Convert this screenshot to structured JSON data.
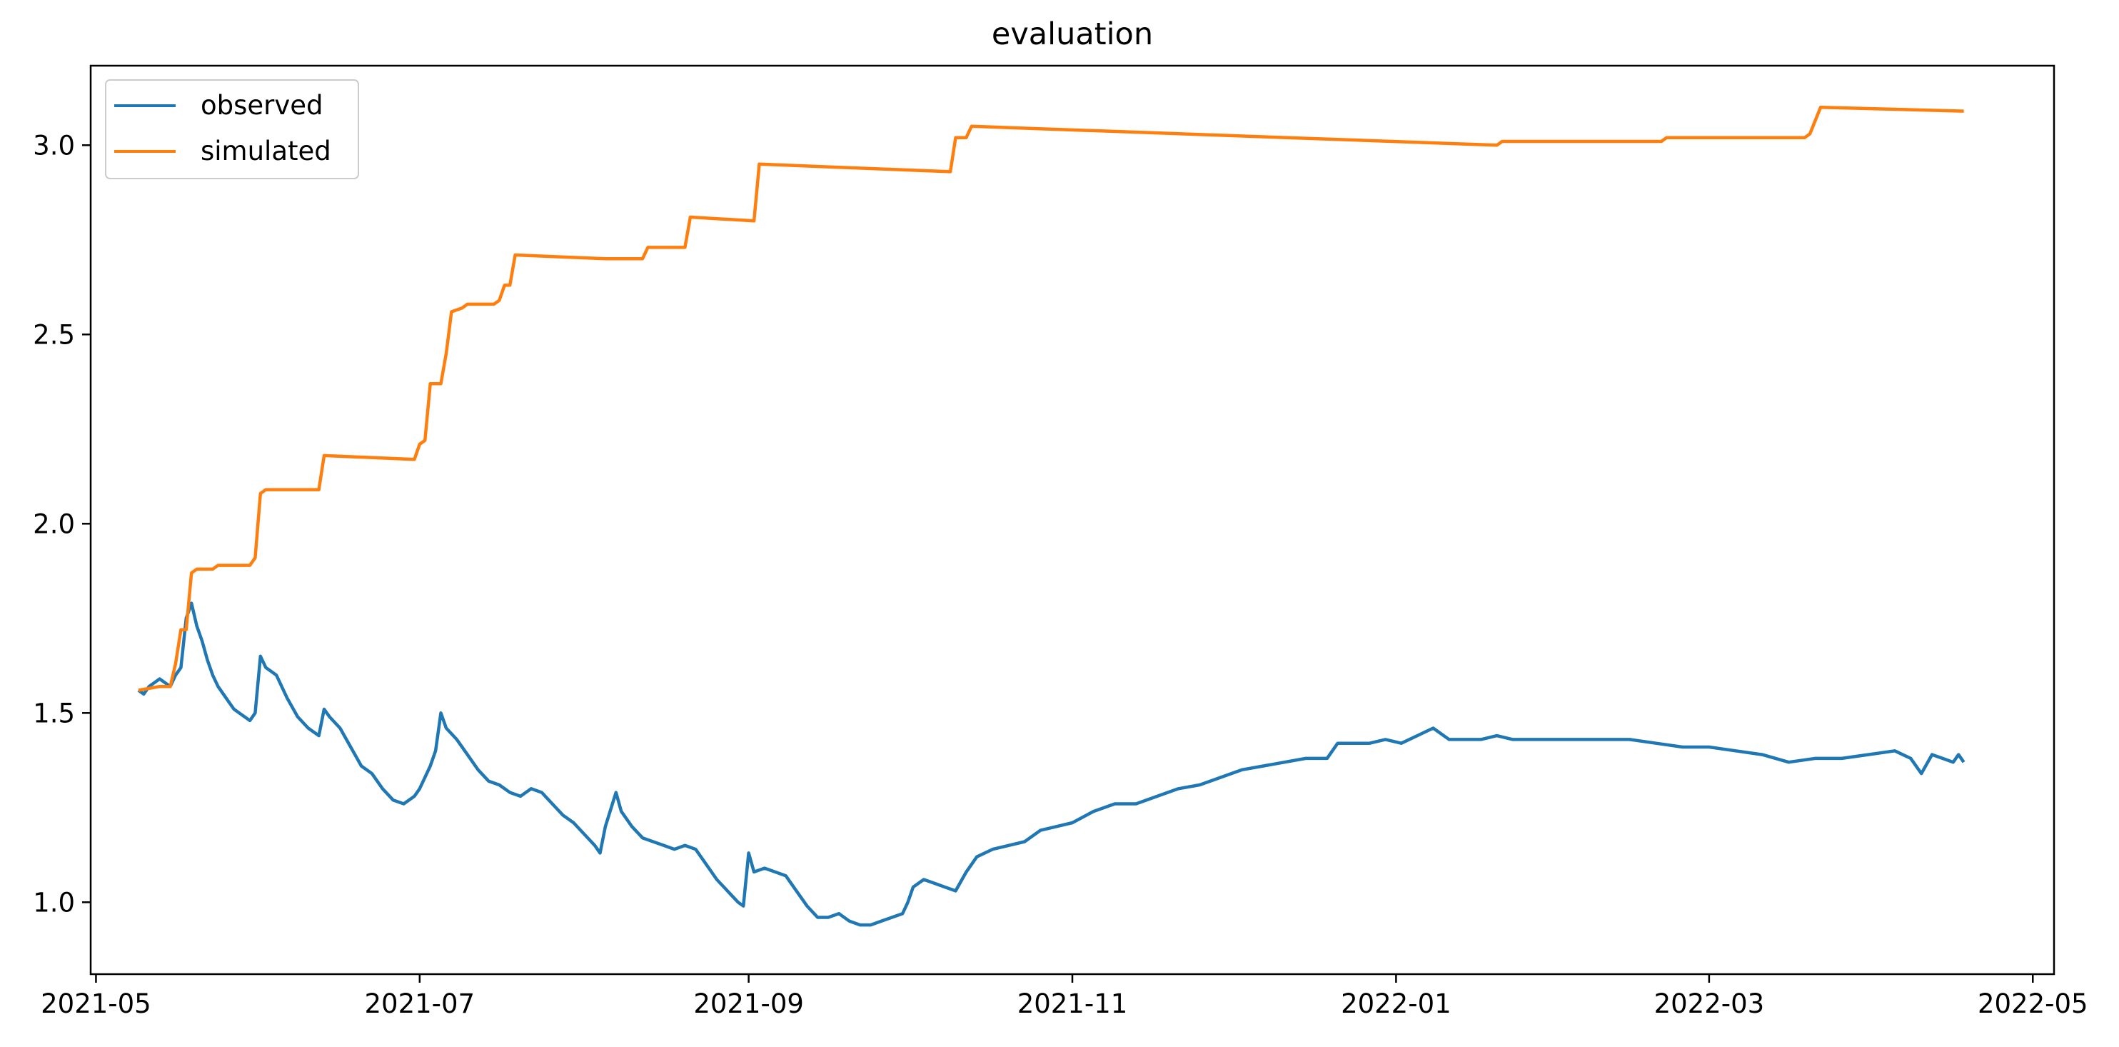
{
  "chart_data": {
    "type": "line",
    "title": "evaluation",
    "xlabel": "",
    "ylabel": "",
    "xlim": [
      "2021-04-30",
      "2022-05-05"
    ],
    "ylim": [
      0.81,
      3.21
    ],
    "xticks": [
      {
        "date": "2021-05-01",
        "label": "2021-05"
      },
      {
        "date": "2021-07-01",
        "label": "2021-07"
      },
      {
        "date": "2021-09-01",
        "label": "2021-09"
      },
      {
        "date": "2021-11-01",
        "label": "2021-11"
      },
      {
        "date": "2022-01-01",
        "label": "2022-01"
      },
      {
        "date": "2022-03-01",
        "label": "2022-03"
      },
      {
        "date": "2022-05-01",
        "label": "2022-05"
      }
    ],
    "yticks": [
      {
        "value": 1.0,
        "label": "1.0"
      },
      {
        "value": 1.5,
        "label": "1.5"
      },
      {
        "value": 2.0,
        "label": "2.0"
      },
      {
        "value": 2.5,
        "label": "2.5"
      },
      {
        "value": 3.0,
        "label": "3.0"
      }
    ],
    "grid": false,
    "legend": {
      "position": "top-left"
    },
    "series": [
      {
        "name": "observed",
        "color": "#1f77b4",
        "points": [
          [
            "2021-05-09",
            1.56
          ],
          [
            "2021-05-10",
            1.55
          ],
          [
            "2021-05-11",
            1.57
          ],
          [
            "2021-05-12",
            1.58
          ],
          [
            "2021-05-13",
            1.59
          ],
          [
            "2021-05-14",
            1.58
          ],
          [
            "2021-05-15",
            1.57
          ],
          [
            "2021-05-16",
            1.6
          ],
          [
            "2021-05-17",
            1.62
          ],
          [
            "2021-05-18",
            1.75
          ],
          [
            "2021-05-19",
            1.79
          ],
          [
            "2021-05-20",
            1.73
          ],
          [
            "2021-05-21",
            1.69
          ],
          [
            "2021-05-22",
            1.64
          ],
          [
            "2021-05-23",
            1.6
          ],
          [
            "2021-05-24",
            1.57
          ],
          [
            "2021-05-25",
            1.55
          ],
          [
            "2021-05-26",
            1.53
          ],
          [
            "2021-05-27",
            1.51
          ],
          [
            "2021-05-28",
            1.5
          ],
          [
            "2021-05-29",
            1.49
          ],
          [
            "2021-05-30",
            1.48
          ],
          [
            "2021-05-31",
            1.5
          ],
          [
            "2021-06-01",
            1.65
          ],
          [
            "2021-06-02",
            1.62
          ],
          [
            "2021-06-04",
            1.6
          ],
          [
            "2021-06-06",
            1.54
          ],
          [
            "2021-06-08",
            1.49
          ],
          [
            "2021-06-10",
            1.46
          ],
          [
            "2021-06-12",
            1.44
          ],
          [
            "2021-06-13",
            1.51
          ],
          [
            "2021-06-14",
            1.49
          ],
          [
            "2021-06-16",
            1.46
          ],
          [
            "2021-06-18",
            1.41
          ],
          [
            "2021-06-20",
            1.36
          ],
          [
            "2021-06-22",
            1.34
          ],
          [
            "2021-06-24",
            1.3
          ],
          [
            "2021-06-26",
            1.27
          ],
          [
            "2021-06-28",
            1.26
          ],
          [
            "2021-06-30",
            1.28
          ],
          [
            "2021-07-01",
            1.3
          ],
          [
            "2021-07-03",
            1.36
          ],
          [
            "2021-07-04",
            1.4
          ],
          [
            "2021-07-05",
            1.5
          ],
          [
            "2021-07-06",
            1.46
          ],
          [
            "2021-07-08",
            1.43
          ],
          [
            "2021-07-10",
            1.39
          ],
          [
            "2021-07-12",
            1.35
          ],
          [
            "2021-07-14",
            1.32
          ],
          [
            "2021-07-16",
            1.31
          ],
          [
            "2021-07-18",
            1.29
          ],
          [
            "2021-07-20",
            1.28
          ],
          [
            "2021-07-22",
            1.3
          ],
          [
            "2021-07-24",
            1.29
          ],
          [
            "2021-07-26",
            1.26
          ],
          [
            "2021-07-28",
            1.23
          ],
          [
            "2021-07-30",
            1.21
          ],
          [
            "2021-08-01",
            1.18
          ],
          [
            "2021-08-03",
            1.15
          ],
          [
            "2021-08-04",
            1.13
          ],
          [
            "2021-08-05",
            1.2
          ],
          [
            "2021-08-07",
            1.29
          ],
          [
            "2021-08-08",
            1.24
          ],
          [
            "2021-08-10",
            1.2
          ],
          [
            "2021-08-12",
            1.17
          ],
          [
            "2021-08-14",
            1.16
          ],
          [
            "2021-08-16",
            1.15
          ],
          [
            "2021-08-18",
            1.14
          ],
          [
            "2021-08-20",
            1.15
          ],
          [
            "2021-08-22",
            1.14
          ],
          [
            "2021-08-24",
            1.1
          ],
          [
            "2021-08-26",
            1.06
          ],
          [
            "2021-08-28",
            1.03
          ],
          [
            "2021-08-30",
            1.0
          ],
          [
            "2021-08-31",
            0.99
          ],
          [
            "2021-09-01",
            1.13
          ],
          [
            "2021-09-02",
            1.08
          ],
          [
            "2021-09-04",
            1.09
          ],
          [
            "2021-09-06",
            1.08
          ],
          [
            "2021-09-08",
            1.07
          ],
          [
            "2021-09-10",
            1.03
          ],
          [
            "2021-09-12",
            0.99
          ],
          [
            "2021-09-14",
            0.96
          ],
          [
            "2021-09-16",
            0.96
          ],
          [
            "2021-09-18",
            0.97
          ],
          [
            "2021-09-20",
            0.95
          ],
          [
            "2021-09-22",
            0.94
          ],
          [
            "2021-09-24",
            0.94
          ],
          [
            "2021-09-26",
            0.95
          ],
          [
            "2021-09-28",
            0.96
          ],
          [
            "2021-09-30",
            0.97
          ],
          [
            "2021-10-01",
            1.0
          ],
          [
            "2021-10-02",
            1.04
          ],
          [
            "2021-10-04",
            1.06
          ],
          [
            "2021-10-06",
            1.05
          ],
          [
            "2021-10-08",
            1.04
          ],
          [
            "2021-10-10",
            1.03
          ],
          [
            "2021-10-12",
            1.08
          ],
          [
            "2021-10-14",
            1.12
          ],
          [
            "2021-10-17",
            1.14
          ],
          [
            "2021-10-20",
            1.15
          ],
          [
            "2021-10-23",
            1.16
          ],
          [
            "2021-10-26",
            1.19
          ],
          [
            "2021-10-29",
            1.2
          ],
          [
            "2021-11-01",
            1.21
          ],
          [
            "2021-11-05",
            1.24
          ],
          [
            "2021-11-09",
            1.26
          ],
          [
            "2021-11-13",
            1.26
          ],
          [
            "2021-11-17",
            1.28
          ],
          [
            "2021-11-21",
            1.3
          ],
          [
            "2021-11-25",
            1.31
          ],
          [
            "2021-11-29",
            1.33
          ],
          [
            "2021-12-03",
            1.35
          ],
          [
            "2021-12-07",
            1.36
          ],
          [
            "2021-12-11",
            1.37
          ],
          [
            "2021-12-15",
            1.38
          ],
          [
            "2021-12-19",
            1.38
          ],
          [
            "2021-12-21",
            1.42
          ],
          [
            "2021-12-24",
            1.42
          ],
          [
            "2021-12-27",
            1.42
          ],
          [
            "2021-12-30",
            1.43
          ],
          [
            "2022-01-02",
            1.42
          ],
          [
            "2022-01-05",
            1.44
          ],
          [
            "2022-01-08",
            1.46
          ],
          [
            "2022-01-11",
            1.43
          ],
          [
            "2022-01-14",
            1.43
          ],
          [
            "2022-01-17",
            1.43
          ],
          [
            "2022-01-20",
            1.44
          ],
          [
            "2022-01-23",
            1.43
          ],
          [
            "2022-01-26",
            1.43
          ],
          [
            "2022-01-30",
            1.43
          ],
          [
            "2022-02-04",
            1.43
          ],
          [
            "2022-02-09",
            1.43
          ],
          [
            "2022-02-14",
            1.43
          ],
          [
            "2022-02-19",
            1.42
          ],
          [
            "2022-02-24",
            1.41
          ],
          [
            "2022-03-01",
            1.41
          ],
          [
            "2022-03-06",
            1.4
          ],
          [
            "2022-03-11",
            1.39
          ],
          [
            "2022-03-16",
            1.37
          ],
          [
            "2022-03-21",
            1.38
          ],
          [
            "2022-03-26",
            1.38
          ],
          [
            "2022-03-31",
            1.39
          ],
          [
            "2022-04-05",
            1.4
          ],
          [
            "2022-04-08",
            1.38
          ],
          [
            "2022-04-10",
            1.34
          ],
          [
            "2022-04-12",
            1.39
          ],
          [
            "2022-04-14",
            1.38
          ],
          [
            "2022-04-16",
            1.37
          ],
          [
            "2022-04-17",
            1.39
          ],
          [
            "2022-04-18",
            1.37
          ]
        ]
      },
      {
        "name": "simulated",
        "color": "#ff7f0e",
        "points": [
          [
            "2021-05-09",
            1.56
          ],
          [
            "2021-05-13",
            1.57
          ],
          [
            "2021-05-15",
            1.57
          ],
          [
            "2021-05-16",
            1.63
          ],
          [
            "2021-05-17",
            1.72
          ],
          [
            "2021-05-18",
            1.72
          ],
          [
            "2021-05-19",
            1.87
          ],
          [
            "2021-05-20",
            1.88
          ],
          [
            "2021-05-23",
            1.88
          ],
          [
            "2021-05-24",
            1.89
          ],
          [
            "2021-05-30",
            1.89
          ],
          [
            "2021-05-31",
            1.91
          ],
          [
            "2021-06-01",
            2.08
          ],
          [
            "2021-06-02",
            2.09
          ],
          [
            "2021-06-12",
            2.09
          ],
          [
            "2021-06-13",
            2.18
          ],
          [
            "2021-06-30",
            2.17
          ],
          [
            "2021-07-01",
            2.21
          ],
          [
            "2021-07-02",
            2.22
          ],
          [
            "2021-07-03",
            2.37
          ],
          [
            "2021-07-05",
            2.37
          ],
          [
            "2021-07-06",
            2.45
          ],
          [
            "2021-07-07",
            2.56
          ],
          [
            "2021-07-09",
            2.57
          ],
          [
            "2021-07-10",
            2.58
          ],
          [
            "2021-07-15",
            2.58
          ],
          [
            "2021-07-16",
            2.59
          ],
          [
            "2021-07-17",
            2.63
          ],
          [
            "2021-07-18",
            2.63
          ],
          [
            "2021-07-19",
            2.71
          ],
          [
            "2021-08-05",
            2.7
          ],
          [
            "2021-08-12",
            2.7
          ],
          [
            "2021-08-13",
            2.73
          ],
          [
            "2021-08-20",
            2.73
          ],
          [
            "2021-08-21",
            2.81
          ],
          [
            "2021-09-02",
            2.8
          ],
          [
            "2021-09-03",
            2.95
          ],
          [
            "2021-10-09",
            2.93
          ],
          [
            "2021-10-10",
            3.02
          ],
          [
            "2021-10-12",
            3.02
          ],
          [
            "2021-10-13",
            3.05
          ],
          [
            "2022-01-20",
            3.0
          ],
          [
            "2022-01-21",
            3.01
          ],
          [
            "2022-01-26",
            3.01
          ],
          [
            "2022-01-27",
            3.01
          ],
          [
            "2022-02-20",
            3.01
          ],
          [
            "2022-02-21",
            3.02
          ],
          [
            "2022-03-10",
            3.02
          ],
          [
            "2022-03-19",
            3.02
          ],
          [
            "2022-03-20",
            3.03
          ],
          [
            "2022-03-22",
            3.1
          ],
          [
            "2022-04-18",
            3.09
          ]
        ]
      }
    ]
  }
}
